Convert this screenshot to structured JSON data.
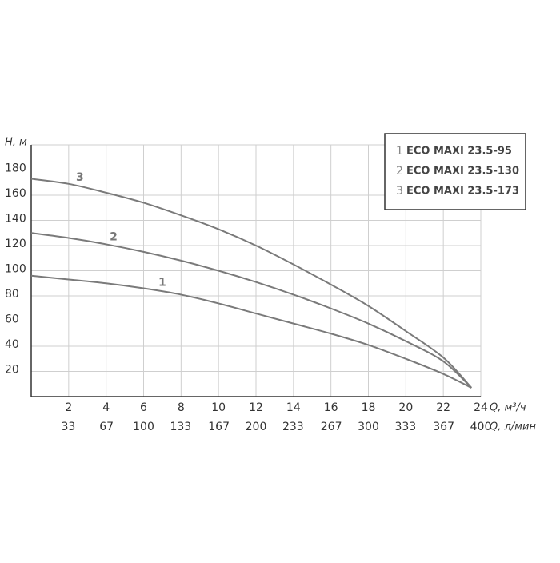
{
  "chart_data": {
    "type": "line",
    "y_label": "H, м",
    "x_label": "Q, м³/ч",
    "x2_label": "Q, л/мин",
    "x": [
      0,
      2,
      4,
      6,
      8,
      10,
      12,
      14,
      16,
      18,
      20,
      22,
      23.5
    ],
    "series": [
      {
        "label": "1",
        "name": "ECO MAXI 23.5-95",
        "color": "#7a7a7a",
        "values": [
          96,
          93,
          90,
          86,
          81,
          74,
          66,
          58,
          50,
          41,
          30,
          18,
          7
        ]
      },
      {
        "label": "2",
        "name": "ECO MAXI 23.5-130",
        "color": "#7a7a7a",
        "values": [
          130,
          126,
          121,
          115,
          108,
          100,
          91,
          81,
          70,
          58,
          44,
          28,
          7
        ]
      },
      {
        "label": "3",
        "name": "ECO MAXI 23.5-173",
        "color": "#7a7a7a",
        "values": [
          173,
          169,
          162,
          154,
          144,
          133,
          120,
          105,
          89,
          72,
          52,
          31,
          7
        ]
      }
    ],
    "xlim": [
      0,
      24
    ],
    "xticks": [
      2,
      4,
      6,
      8,
      10,
      12,
      14,
      16,
      18,
      20,
      22,
      24
    ],
    "x2lim": [
      0,
      400
    ],
    "x2ticks": [
      33,
      67,
      100,
      133,
      167,
      200,
      233,
      267,
      300,
      333,
      367,
      400
    ],
    "ylim": [
      0,
      200
    ],
    "yticks": [
      20,
      40,
      60,
      80,
      100,
      120,
      140,
      160,
      180
    ],
    "grid": true
  }
}
